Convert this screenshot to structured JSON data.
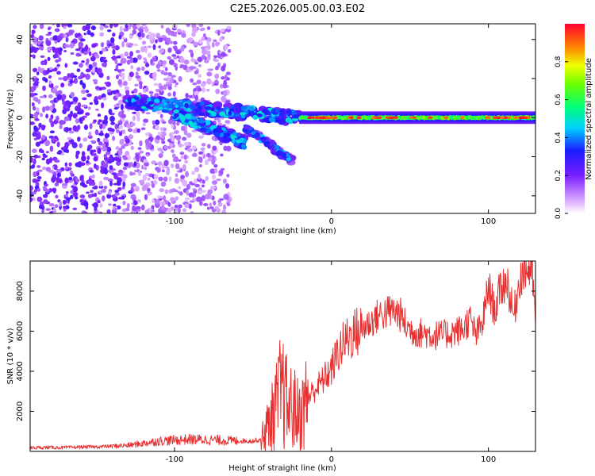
{
  "title": "C2E5.2026.005.00.03.E02",
  "chart_data": [
    {
      "type": "heatmap",
      "title": "C2E5.2026.005.00.03.E02",
      "xlabel": "Height of straight line (km)",
      "ylabel": "Frequency (Hz)",
      "xlim": [
        -192,
        130
      ],
      "ylim": [
        -49,
        48
      ],
      "xticks": [
        -100,
        0,
        100
      ],
      "xtick_labels": [
        "-100",
        "0",
        "100"
      ],
      "yticks": [
        40,
        20,
        0,
        -20,
        -40
      ],
      "ytick_labels": [
        "40",
        "20",
        "0",
        "-20",
        "-40"
      ],
      "colorbar": {
        "label": "Normalized spectral amplitude",
        "range": [
          0,
          1
        ],
        "ticks": [
          0.0,
          0.2,
          0.4,
          0.6,
          0.8
        ],
        "tick_labels": [
          "0.0",
          "0.2",
          "0.4",
          "0.6",
          "0.8"
        ],
        "colormap": "rainbow (white → violet → blue → cyan → green → yellow → red)"
      },
      "features": [
        {
          "name": "coherent signal band",
          "x_range": [
            -20,
            130
          ],
          "frequency_hz": 0,
          "amplitude": [
            0.5,
            1.0
          ]
        },
        {
          "name": "upper branch",
          "x_start": -130,
          "x_end": -20,
          "frequency_hz_start": 8,
          "frequency_hz_end": 0,
          "amplitude": [
            0.3,
            0.5
          ]
        },
        {
          "name": "lower branch",
          "x_start": -100,
          "x_end": -55,
          "frequency_hz_start": 2,
          "frequency_hz_end": -13,
          "amplitude": [
            0.3,
            0.5
          ]
        },
        {
          "name": "second branch",
          "x_start": -55,
          "x_end": -25,
          "frequency_hz_start": -5,
          "frequency_hz_end": -22,
          "amplitude": [
            0.2,
            0.45
          ]
        },
        {
          "name": "noise region",
          "x_range": [
            -192,
            -65
          ],
          "frequency_hz_range": [
            -49,
            48
          ],
          "amplitude": [
            0.05,
            0.25
          ]
        }
      ]
    },
    {
      "type": "line",
      "xlabel": "Height of straight line (km)",
      "ylabel": "SNR (10 * v/v)",
      "xlim": [
        -192,
        130
      ],
      "ylim": [
        0,
        9500
      ],
      "xticks": [
        -100,
        0,
        100
      ],
      "xtick_labels": [
        "-100",
        "0",
        "100"
      ],
      "yticks": [
        2000,
        4000,
        6000,
        8000
      ],
      "ytick_labels": [
        "2000",
        "4000",
        "6000",
        "8000"
      ],
      "line_color": "#e83030",
      "series": [
        {
          "name": "SNR",
          "x": [
            -192,
            -180,
            -170,
            -160,
            -150,
            -140,
            -130,
            -120,
            -110,
            -100,
            -90,
            -80,
            -70,
            -60,
            -50,
            -45,
            -40,
            -36,
            -32,
            -28,
            -24,
            -20,
            -16,
            -12,
            -8,
            -4,
            0,
            4,
            8,
            10,
            14,
            18,
            22,
            26,
            30,
            36,
            40,
            44,
            48,
            52,
            56,
            60,
            64,
            70,
            76,
            80,
            84,
            88,
            92,
            96,
            100,
            104,
            108,
            112,
            116,
            120,
            124,
            128,
            130
          ],
          "y": [
            180,
            200,
            190,
            220,
            230,
            260,
            300,
            400,
            520,
            560,
            600,
            580,
            560,
            520,
            520,
            600,
            1300,
            2000,
            3100,
            2300,
            2100,
            1700,
            2500,
            3000,
            3300,
            3700,
            4100,
            4900,
            5400,
            5600,
            5900,
            6000,
            6300,
            6500,
            6800,
            6950,
            7000,
            6800,
            6200,
            6000,
            5900,
            5900,
            5800,
            5800,
            5900,
            6000,
            6100,
            6600,
            5800,
            6300,
            8200,
            7000,
            8200,
            8500,
            6700,
            8700,
            9100,
            9000,
            6300
          ]
        }
      ]
    }
  ]
}
